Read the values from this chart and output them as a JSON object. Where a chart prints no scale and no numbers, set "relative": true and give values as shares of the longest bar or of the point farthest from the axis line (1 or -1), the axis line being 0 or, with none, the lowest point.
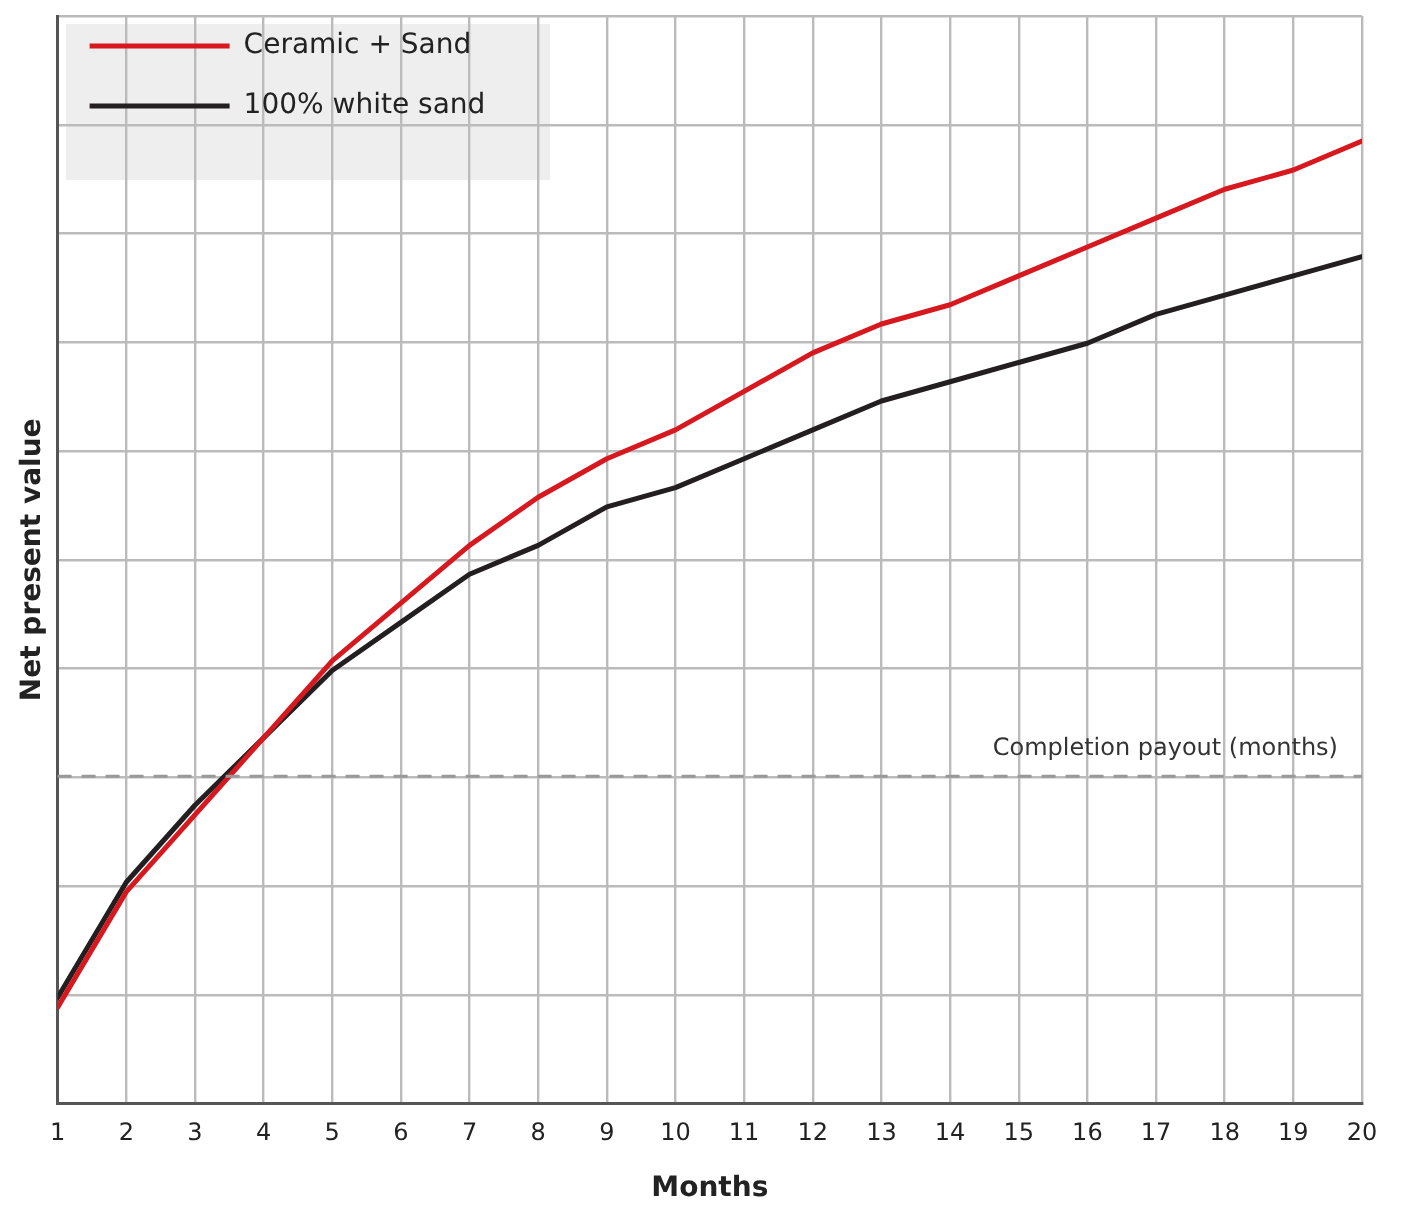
{
  "chart_data": {
    "type": "line",
    "xlabel": "Months",
    "ylabel": "Net present value",
    "relative": true,
    "x": [
      1,
      2,
      3,
      4,
      5,
      6,
      7,
      8,
      9,
      10,
      11,
      12,
      13,
      14,
      15,
      16,
      17,
      18,
      19,
      20
    ],
    "xlim": [
      1,
      20
    ],
    "xticks": [
      1,
      2,
      3,
      4,
      5,
      6,
      7,
      8,
      9,
      10,
      11,
      12,
      13,
      14,
      15,
      16,
      17,
      18,
      19,
      20
    ],
    "series": [
      {
        "name": "Ceramic + Sand",
        "color": "#d7191f",
        "values": [
          0.1,
          0.22,
          0.3,
          0.38,
          0.46,
          0.52,
          0.58,
          0.63,
          0.67,
          0.7,
          0.74,
          0.78,
          0.81,
          0.83,
          0.86,
          0.89,
          0.92,
          0.95,
          0.97,
          1
        ]
      },
      {
        "name": "100% white sand",
        "color": "#231f20",
        "values": [
          0.11,
          0.23,
          0.31,
          0.38,
          0.45,
          0.5,
          0.55,
          0.58,
          0.62,
          0.64,
          0.67,
          0.7,
          0.73,
          0.75,
          0.77,
          0.79,
          0.82,
          0.84,
          0.86,
          0.88
        ]
      }
    ],
    "ref_lines": [
      {
        "axis": "y",
        "value": 0.34,
        "label": "Completion payout (months)",
        "color": "#999999",
        "line_style": "dashed"
      }
    ],
    "grid": true,
    "legend": "top left",
    "tick_labels": "x",
    "marker": "none",
    "line_style": "solid"
  }
}
